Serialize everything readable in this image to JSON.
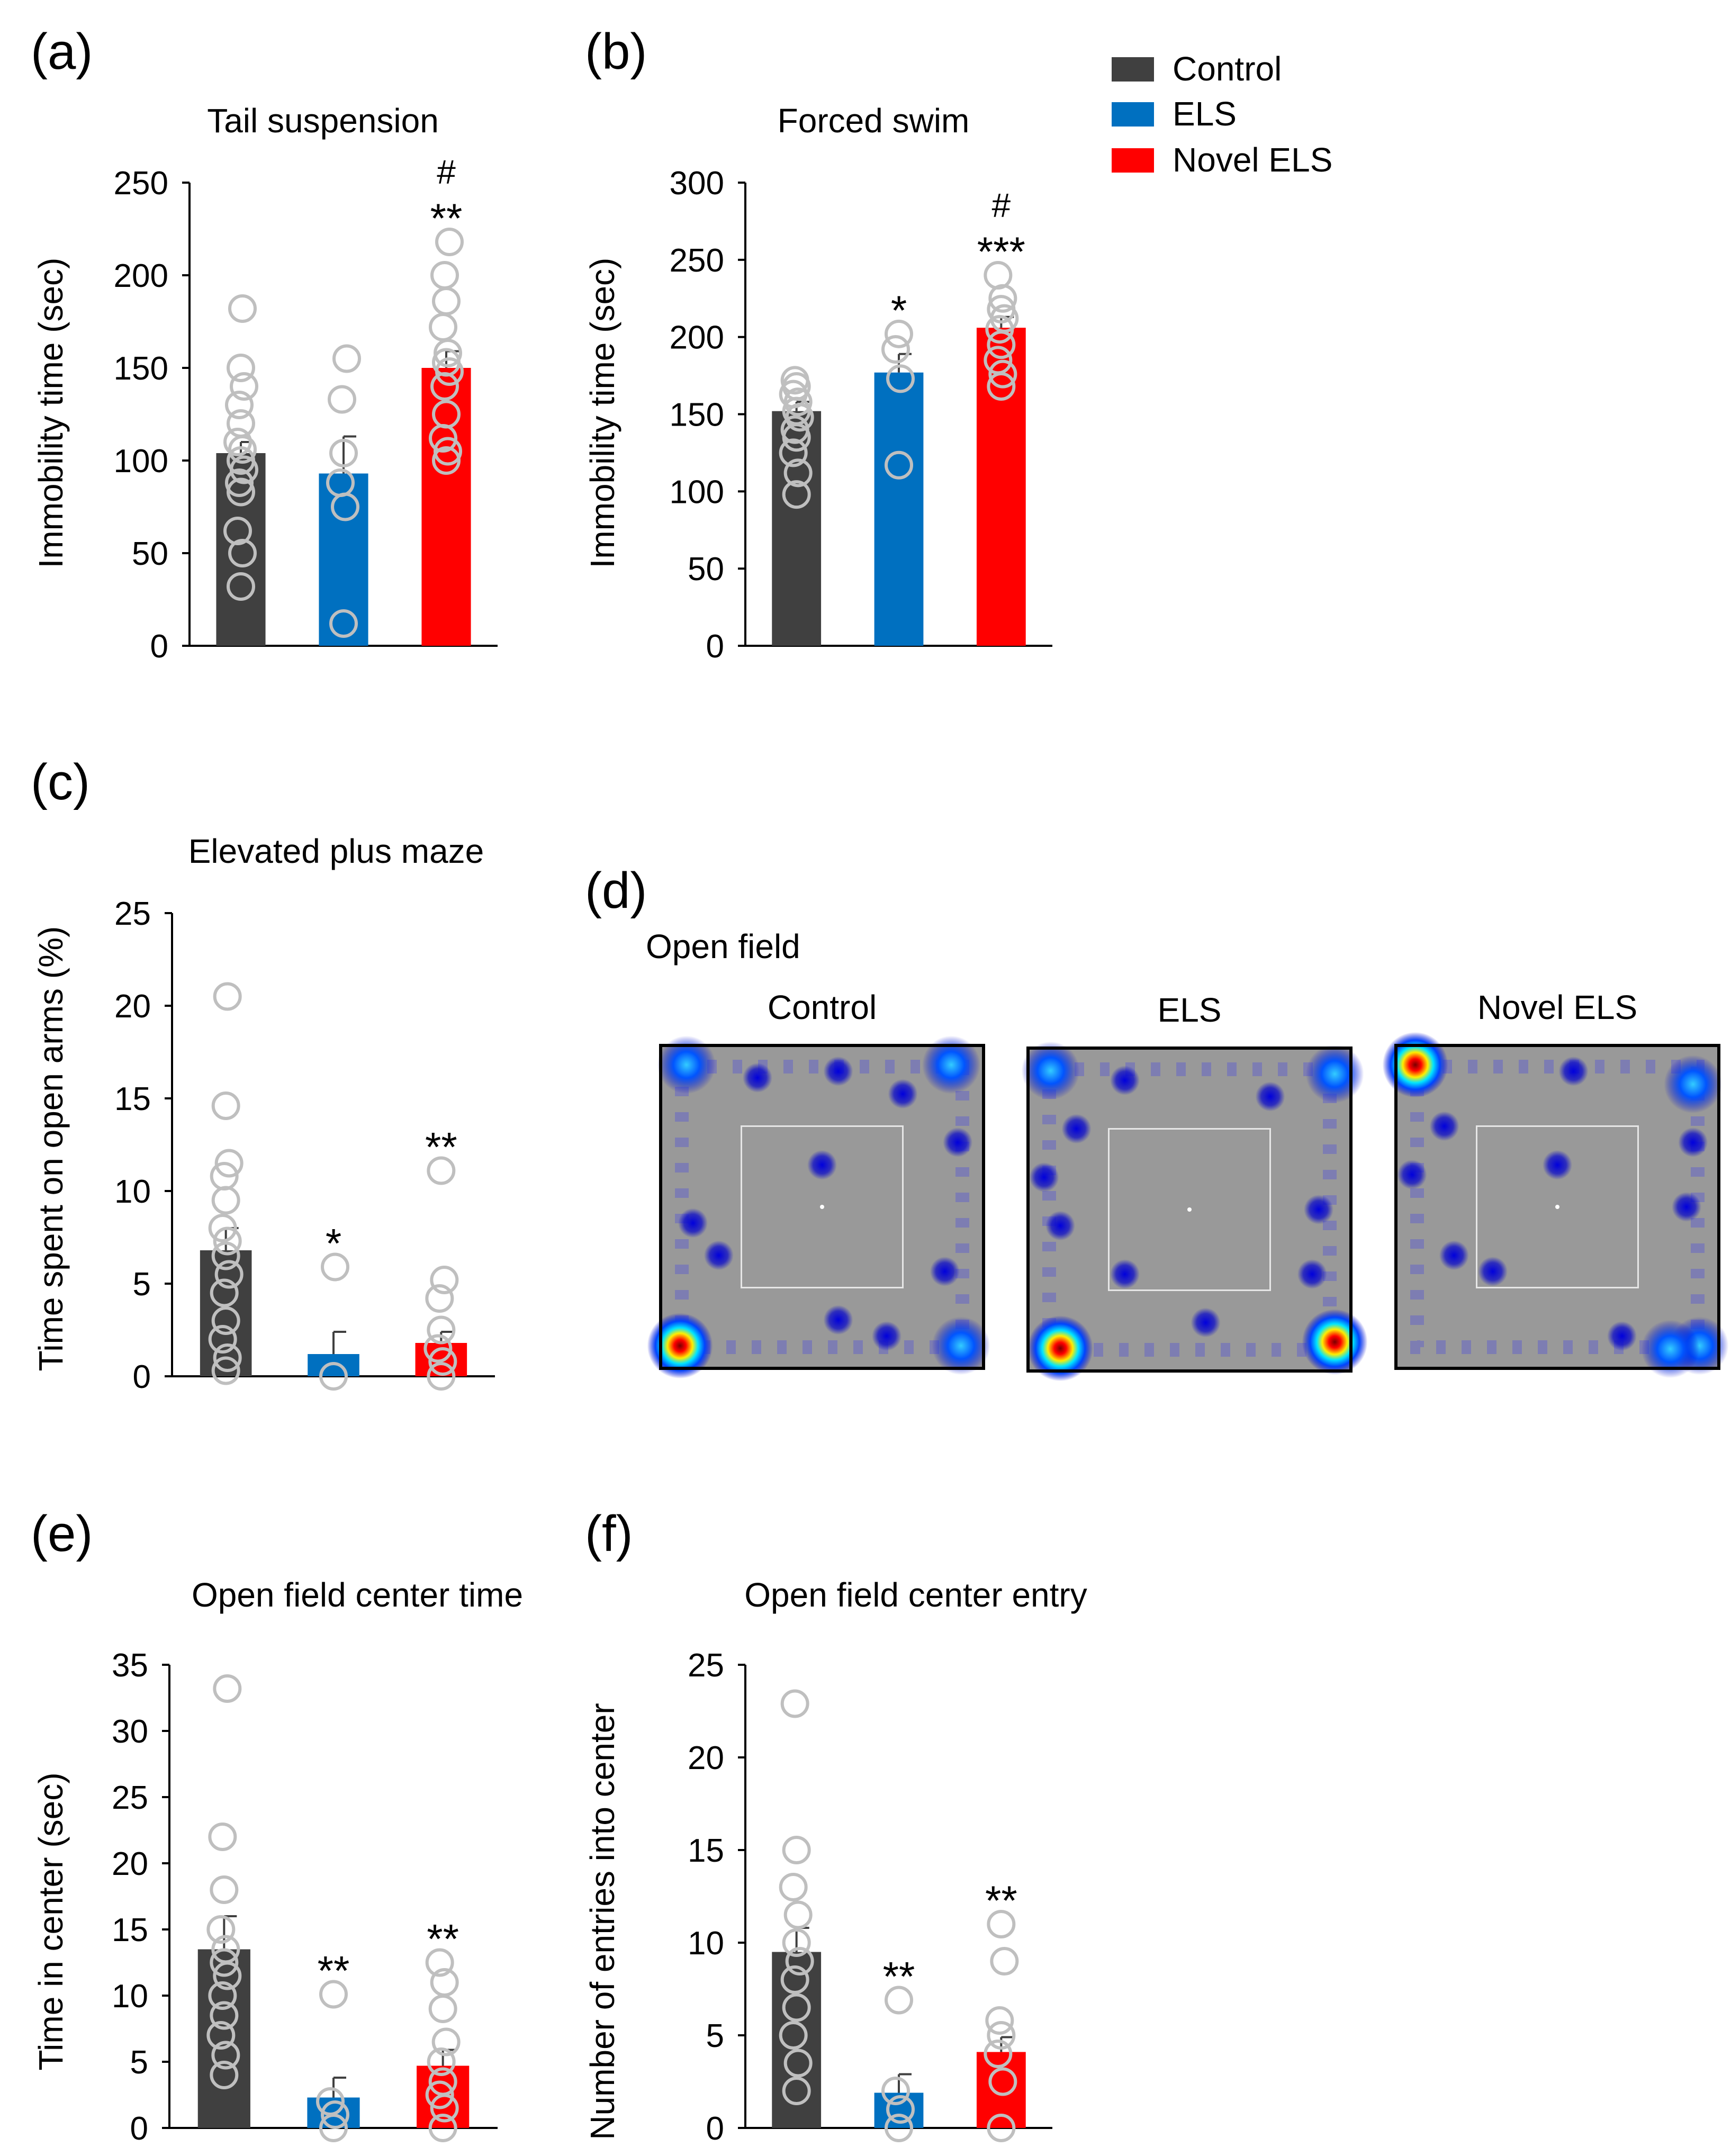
{
  "colors": {
    "control": "#404040",
    "els": "#0070C0",
    "novel": "#FF0000",
    "dot": "#BFBFBF",
    "heat_bg": "#999999"
  },
  "legend": {
    "items": [
      "Control",
      "ELS",
      "Novel ELS"
    ]
  },
  "chart_data": [
    {
      "id": "a",
      "label": "(a)",
      "type": "bar",
      "title": "Tail suspension",
      "ylabel": "Immobility time (sec)",
      "ylim": [
        0,
        250
      ],
      "yticks": [
        "0",
        "50",
        "100",
        "150",
        "200",
        "250"
      ],
      "categories": [
        "Control",
        "ELS",
        "Novel ELS"
      ],
      "values": [
        104,
        93,
        150
      ],
      "errors": [
        6,
        20,
        9
      ],
      "sig": [
        "",
        "",
        "#\n**"
      ],
      "points": [
        [
          32,
          50,
          62,
          83,
          88,
          95,
          100,
          106,
          110,
          120,
          130,
          140,
          150,
          182
        ],
        [
          12,
          75,
          88,
          104,
          133,
          155
        ],
        [
          100,
          105,
          112,
          125,
          140,
          148,
          153,
          158,
          172,
          186,
          200,
          218
        ]
      ]
    },
    {
      "id": "b",
      "label": "(b)",
      "type": "bar",
      "title": "Forced swim",
      "ylabel": "Immobility time (sec)",
      "ylim": [
        0,
        300
      ],
      "yticks": [
        "0",
        "50",
        "100",
        "150",
        "200",
        "250",
        "300"
      ],
      "categories": [
        "Control",
        "ELS",
        "Novel ELS"
      ],
      "values": [
        152,
        177,
        206
      ],
      "errors": [
        6,
        12,
        7
      ],
      "sig": [
        "",
        "*",
        "#\n***"
      ],
      "points": [
        [
          98,
          112,
          125,
          135,
          140,
          148,
          152,
          158,
          163,
          168,
          172
        ],
        [
          117,
          173,
          192,
          202
        ],
        [
          168,
          176,
          185,
          195,
          205,
          212,
          218,
          225,
          240
        ]
      ]
    },
    {
      "id": "c",
      "label": "(c)",
      "type": "bar",
      "title": "Elevated plus maze",
      "ylabel": "Time spent on open arms (%)",
      "ylim": [
        0,
        25
      ],
      "yticks": [
        "0",
        "5",
        "10",
        "15",
        "20",
        "25"
      ],
      "categories": [
        "Control",
        "ELS",
        "Novel ELS"
      ],
      "values": [
        6.8,
        1.2,
        1.8
      ],
      "errors": [
        1.2,
        1.2,
        0.6
      ],
      "sig": [
        "",
        "*",
        "**"
      ],
      "points": [
        [
          0.3,
          1.0,
          2.0,
          3.0,
          4.5,
          5.5,
          6.5,
          7.3,
          8.0,
          9.5,
          10.8,
          11.5,
          14.6,
          20.5
        ],
        [
          0.0,
          5.9
        ],
        [
          0.0,
          0.8,
          1.5,
          2.5,
          4.2,
          5.2,
          11.1
        ]
      ]
    },
    {
      "id": "e",
      "label": "(e)",
      "type": "bar",
      "title": "Open field center time",
      "ylabel": "Time in center (sec)",
      "ylim": [
        0,
        35
      ],
      "yticks": [
        "0",
        "5",
        "10",
        "15",
        "20",
        "25",
        "30",
        "35"
      ],
      "categories": [
        "Control",
        "ELS",
        "Novel ELS"
      ],
      "values": [
        13.5,
        2.3,
        4.7
      ],
      "errors": [
        2.5,
        1.5,
        1.2
      ],
      "sig": [
        "",
        "**",
        "**"
      ],
      "points": [
        [
          4.0,
          5.5,
          7.0,
          8.5,
          10.0,
          11.5,
          12.5,
          13.5,
          15.0,
          18.0,
          22.0,
          33.2
        ],
        [
          0.0,
          1.0,
          2.0,
          10.1
        ],
        [
          0.0,
          1.5,
          2.5,
          3.5,
          5.0,
          6.5,
          9.0,
          11.0,
          12.5
        ]
      ]
    },
    {
      "id": "f",
      "label": "(f)",
      "type": "bar",
      "title": "Open field center entry",
      "ylabel": "Number of entries into center",
      "ylim": [
        0,
        25
      ],
      "yticks": [
        "0",
        "5",
        "10",
        "15",
        "20",
        "25"
      ],
      "categories": [
        "Control",
        "ELS",
        "Novel ELS"
      ],
      "values": [
        9.5,
        1.9,
        4.1
      ],
      "errors": [
        1.3,
        1.0,
        0.8
      ],
      "sig": [
        "",
        "**",
        "**"
      ],
      "points": [
        [
          2.0,
          3.5,
          5.0,
          6.5,
          8.0,
          9.0,
          10.0,
          11.5,
          13.0,
          15.0,
          22.9
        ],
        [
          0.0,
          1.0,
          2.0,
          6.9
        ],
        [
          0.0,
          2.5,
          4.0,
          5.0,
          5.8,
          9.0,
          11.0
        ]
      ]
    }
  ],
  "panel_d": {
    "label": "(d)",
    "title": "Open field",
    "maps": [
      {
        "name": "Control",
        "hotspots": [
          [
            "hot",
            0.06,
            0.93
          ],
          [
            "warm",
            0.93,
            0.93
          ],
          [
            "warm",
            0.9,
            0.06
          ],
          [
            "warm",
            0.08,
            0.06
          ]
        ]
      },
      {
        "name": "ELS",
        "hotspots": [
          [
            "hot",
            0.1,
            0.93
          ],
          [
            "hot",
            0.95,
            0.91
          ],
          [
            "warm",
            0.95,
            0.08
          ],
          [
            "warm",
            0.07,
            0.07
          ]
        ]
      },
      {
        "name": "Novel ELS",
        "hotspots": [
          [
            "hot",
            0.06,
            0.06
          ],
          [
            "warm",
            0.94,
            0.93
          ],
          [
            "warm",
            0.85,
            0.94
          ],
          [
            "warm",
            0.92,
            0.12
          ]
        ]
      }
    ]
  }
}
